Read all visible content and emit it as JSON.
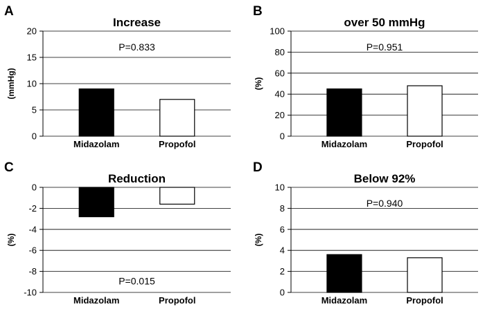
{
  "chart_data": [
    {
      "type": "bar",
      "panel": "A",
      "title": "Increase",
      "ylabel": "(mmHg)",
      "xlabel": "",
      "categories": [
        "Midazolam",
        "Propofol"
      ],
      "values": [
        9,
        7
      ],
      "colors": [
        "#000000",
        "#ffffff"
      ],
      "ylim": [
        0,
        20
      ],
      "yticks": [
        0,
        5,
        10,
        15,
        20
      ],
      "grid": true,
      "annotation": "P=0.833",
      "annotation_value": 17
    },
    {
      "type": "bar",
      "panel": "B",
      "title": "over 50 mmHg",
      "ylabel": "(%)",
      "xlabel": "",
      "categories": [
        "Midazolam",
        "Propofol"
      ],
      "values": [
        45,
        48
      ],
      "colors": [
        "#000000",
        "#ffffff"
      ],
      "ylim": [
        0,
        100
      ],
      "yticks": [
        0,
        20,
        40,
        60,
        80,
        100
      ],
      "grid": true,
      "annotation": "P=0.951",
      "annotation_value": 85
    },
    {
      "type": "bar",
      "panel": "C",
      "title": "Reduction",
      "ylabel": "(%)",
      "xlabel": "",
      "categories": [
        "Midazolam",
        "Propofol"
      ],
      "values": [
        -2.8,
        -1.6
      ],
      "colors": [
        "#000000",
        "#ffffff"
      ],
      "ylim": [
        -10,
        0
      ],
      "yticks": [
        -10,
        -8,
        -6,
        -4,
        -2,
        0
      ],
      "grid": true,
      "annotation": "P=0.015",
      "annotation_value": -8.9
    },
    {
      "type": "bar",
      "panel": "D",
      "title": "Below 92%",
      "ylabel": "(%)",
      "xlabel": "",
      "categories": [
        "Midazolam",
        "Propofol"
      ],
      "values": [
        3.6,
        3.3
      ],
      "colors": [
        "#000000",
        "#ffffff"
      ],
      "ylim": [
        0,
        10
      ],
      "yticks": [
        0,
        2,
        4,
        6,
        8,
        10
      ],
      "grid": true,
      "annotation": "P=0.940",
      "annotation_value": 8.5
    }
  ]
}
